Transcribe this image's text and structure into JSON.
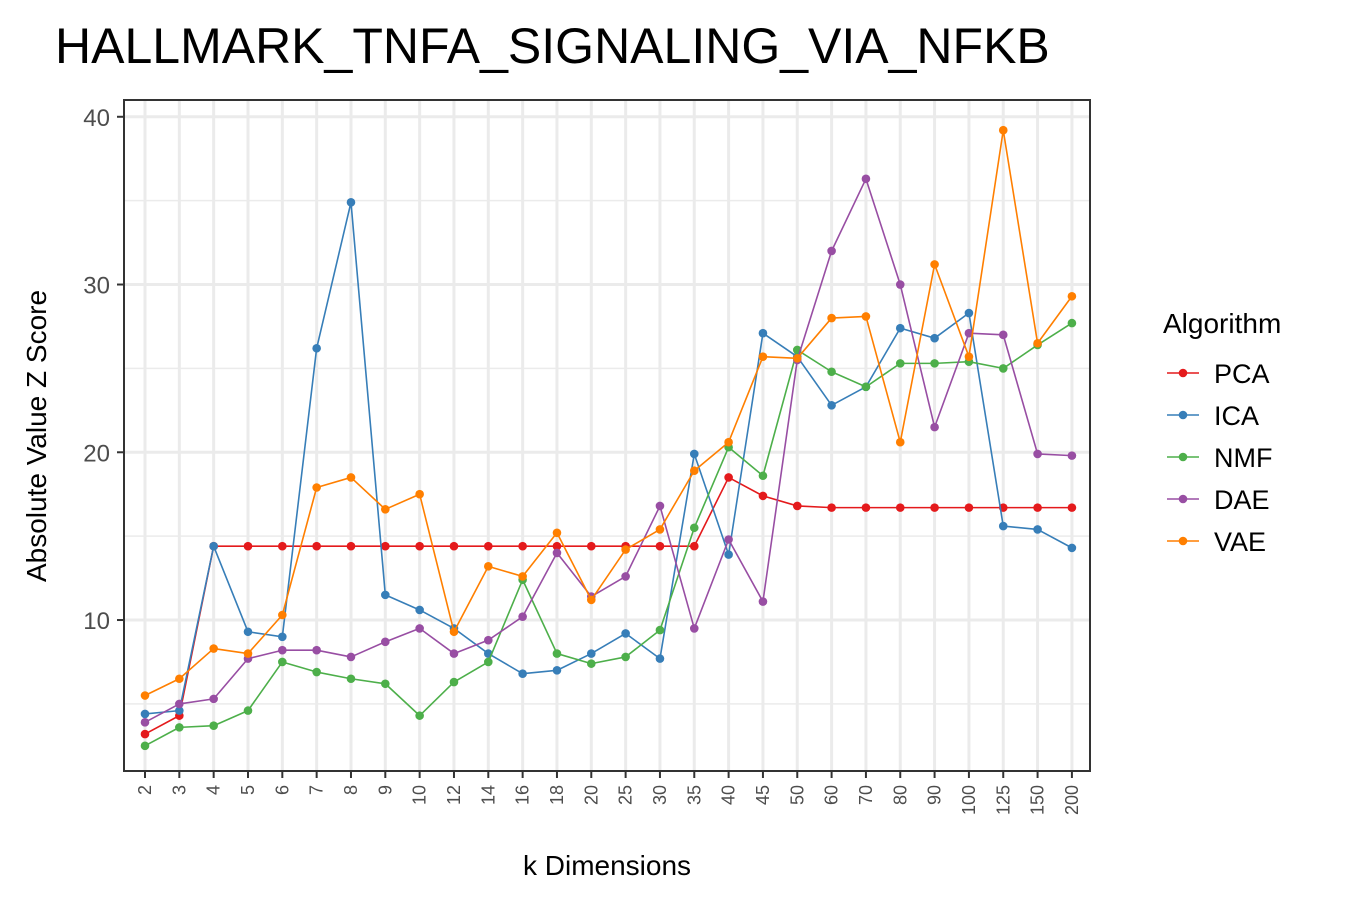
{
  "chart_data": {
    "type": "line",
    "title": "HALLMARK_TNFA_SIGNALING_VIA_NFKB",
    "xlabel": "k Dimensions",
    "ylabel": "Absolute Value Z Score",
    "categories": [
      "2",
      "3",
      "4",
      "5",
      "6",
      "7",
      "8",
      "9",
      "10",
      "12",
      "14",
      "16",
      "18",
      "20",
      "25",
      "30",
      "35",
      "40",
      "45",
      "50",
      "60",
      "70",
      "80",
      "90",
      "100",
      "125",
      "150",
      "200"
    ],
    "ylim": [
      1,
      41
    ],
    "yticks": [
      10,
      20,
      30,
      40
    ],
    "grid": true,
    "legend": {
      "title": "Algorithm",
      "position": "right"
    },
    "series": [
      {
        "name": "PCA",
        "color": "#e41a1c",
        "values": [
          3.2,
          4.3,
          14.4,
          14.4,
          14.4,
          14.4,
          14.4,
          14.4,
          14.4,
          14.4,
          14.4,
          14.4,
          14.4,
          14.4,
          14.4,
          14.4,
          14.4,
          18.5,
          17.4,
          16.8,
          16.7,
          16.7,
          16.7,
          16.7,
          16.7,
          16.7,
          16.7,
          16.7
        ]
      },
      {
        "name": "ICA",
        "color": "#377eb8",
        "values": [
          4.4,
          4.6,
          14.4,
          9.3,
          9.0,
          26.2,
          34.9,
          11.5,
          10.6,
          9.5,
          8.0,
          6.8,
          7.0,
          8.0,
          9.2,
          7.7,
          19.9,
          13.9,
          27.1,
          25.7,
          22.8,
          23.9,
          27.4,
          26.8,
          28.3,
          15.6,
          15.4,
          14.3
        ]
      },
      {
        "name": "NMF",
        "color": "#4daf4a",
        "values": [
          2.5,
          3.6,
          3.7,
          4.6,
          7.5,
          6.9,
          6.5,
          6.2,
          4.3,
          6.3,
          7.5,
          12.4,
          8.0,
          7.4,
          7.8,
          9.4,
          15.5,
          20.3,
          18.6,
          26.1,
          24.8,
          23.9,
          25.3,
          25.3,
          25.4,
          25.0,
          26.4,
          27.7
        ]
      },
      {
        "name": "DAE",
        "color": "#984ea3",
        "values": [
          3.9,
          5.0,
          5.3,
          7.7,
          8.2,
          8.2,
          7.8,
          8.7,
          9.5,
          8.0,
          8.8,
          10.2,
          14.0,
          11.4,
          12.6,
          16.8,
          9.5,
          14.8,
          11.1,
          25.5,
          32.0,
          36.3,
          30.0,
          21.5,
          27.1,
          27.0,
          19.9,
          19.8
        ]
      },
      {
        "name": "VAE",
        "color": "#ff7f00",
        "values": [
          5.5,
          6.5,
          8.3,
          8.0,
          10.3,
          17.9,
          18.5,
          16.6,
          17.5,
          9.3,
          13.2,
          12.6,
          15.2,
          11.2,
          14.2,
          15.4,
          18.9,
          20.6,
          25.7,
          25.6,
          28.0,
          28.1,
          20.6,
          31.2,
          25.7,
          39.2,
          26.5,
          29.3
        ]
      }
    ]
  }
}
